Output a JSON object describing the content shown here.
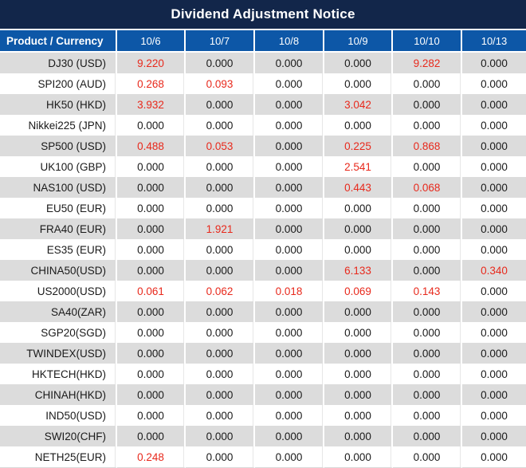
{
  "title": "Dividend Adjustment Notice",
  "colors": {
    "title_bar_bg": "#12264a",
    "header_bg": "#0d57a7",
    "stripe_row_bg": "#dcdcdc",
    "plain_row_bg": "#ffffff",
    "value_text": "#1a1a1a",
    "nonzero_value_text": "#e8291c"
  },
  "table": {
    "header": [
      "Product / Currency",
      "10/6",
      "10/7",
      "10/8",
      "10/9",
      "10/10",
      "10/13"
    ],
    "rows": [
      {
        "product": "DJ30 (USD)",
        "values": [
          "9.220",
          "0.000",
          "0.000",
          "0.000",
          "9.282",
          "0.000"
        ]
      },
      {
        "product": "SPI200 (AUD)",
        "values": [
          "0.268",
          "0.093",
          "0.000",
          "0.000",
          "0.000",
          "0.000"
        ]
      },
      {
        "product": "HK50 (HKD)",
        "values": [
          "3.932",
          "0.000",
          "0.000",
          "3.042",
          "0.000",
          "0.000"
        ]
      },
      {
        "product": "Nikkei225 (JPN)",
        "values": [
          "0.000",
          "0.000",
          "0.000",
          "0.000",
          "0.000",
          "0.000"
        ]
      },
      {
        "product": "SP500 (USD)",
        "values": [
          "0.488",
          "0.053",
          "0.000",
          "0.225",
          "0.868",
          "0.000"
        ]
      },
      {
        "product": "UK100 (GBP)",
        "values": [
          "0.000",
          "0.000",
          "0.000",
          "2.541",
          "0.000",
          "0.000"
        ]
      },
      {
        "product": "NAS100 (USD)",
        "values": [
          "0.000",
          "0.000",
          "0.000",
          "0.443",
          "0.068",
          "0.000"
        ]
      },
      {
        "product": "EU50 (EUR)",
        "values": [
          "0.000",
          "0.000",
          "0.000",
          "0.000",
          "0.000",
          "0.000"
        ]
      },
      {
        "product": "FRA40 (EUR)",
        "values": [
          "0.000",
          "1.921",
          "0.000",
          "0.000",
          "0.000",
          "0.000"
        ]
      },
      {
        "product": "ES35 (EUR)",
        "values": [
          "0.000",
          "0.000",
          "0.000",
          "0.000",
          "0.000",
          "0.000"
        ]
      },
      {
        "product": "CHINA50(USD)",
        "values": [
          "0.000",
          "0.000",
          "0.000",
          "6.133",
          "0.000",
          "0.340"
        ]
      },
      {
        "product": "US2000(USD)",
        "values": [
          "0.061",
          "0.062",
          "0.018",
          "0.069",
          "0.143",
          "0.000"
        ]
      },
      {
        "product": "SA40(ZAR)",
        "values": [
          "0.000",
          "0.000",
          "0.000",
          "0.000",
          "0.000",
          "0.000"
        ]
      },
      {
        "product": "SGP20(SGD)",
        "values": [
          "0.000",
          "0.000",
          "0.000",
          "0.000",
          "0.000",
          "0.000"
        ]
      },
      {
        "product": "TWINDEX(USD)",
        "values": [
          "0.000",
          "0.000",
          "0.000",
          "0.000",
          "0.000",
          "0.000"
        ]
      },
      {
        "product": "HKTECH(HKD)",
        "values": [
          "0.000",
          "0.000",
          "0.000",
          "0.000",
          "0.000",
          "0.000"
        ]
      },
      {
        "product": "CHINAH(HKD)",
        "values": [
          "0.000",
          "0.000",
          "0.000",
          "0.000",
          "0.000",
          "0.000"
        ]
      },
      {
        "product": "IND50(USD)",
        "values": [
          "0.000",
          "0.000",
          "0.000",
          "0.000",
          "0.000",
          "0.000"
        ]
      },
      {
        "product": "SWI20(CHF)",
        "values": [
          "0.000",
          "0.000",
          "0.000",
          "0.000",
          "0.000",
          "0.000"
        ]
      },
      {
        "product": "NETH25(EUR)",
        "values": [
          "0.248",
          "0.000",
          "0.000",
          "0.000",
          "0.000",
          "0.000"
        ]
      }
    ]
  }
}
